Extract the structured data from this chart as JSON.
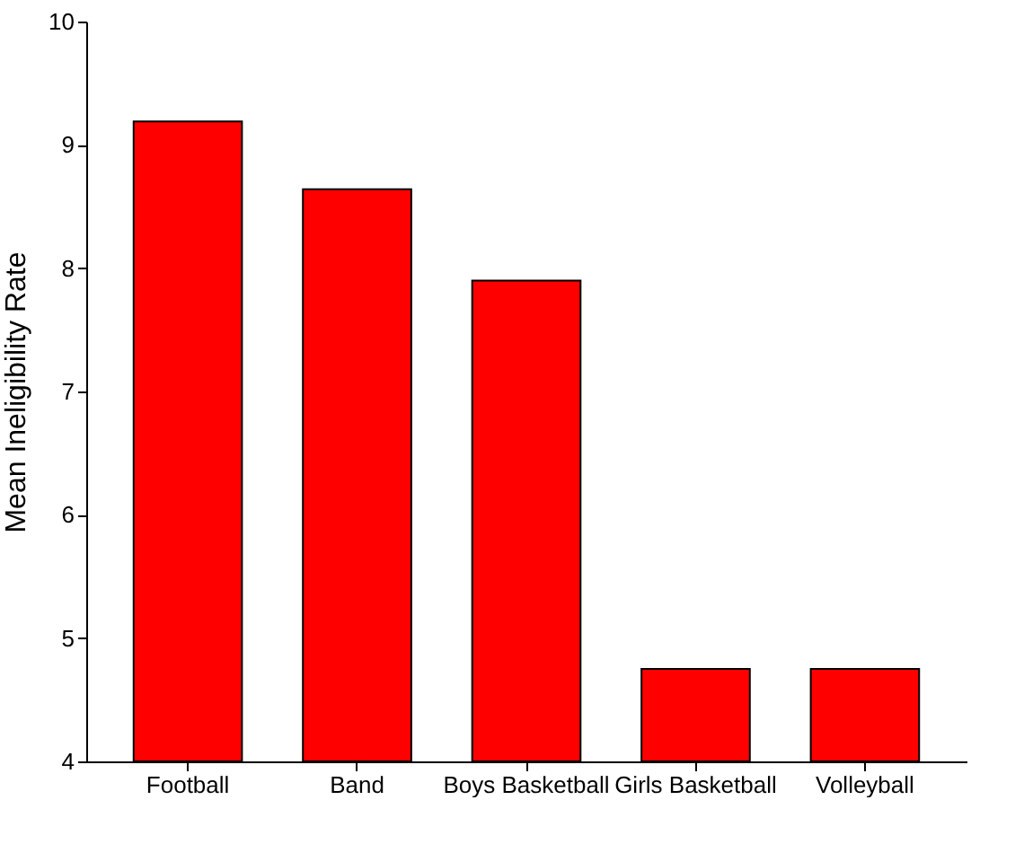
{
  "chart_data": {
    "type": "bar",
    "ylabel": "Mean Ineligibility Rate",
    "categories": [
      "Football",
      "Band",
      "Boys Basketball",
      "Girls Basketball",
      "Volleyball"
    ],
    "values": [
      9.19,
      8.64,
      7.9,
      4.75,
      4.75
    ],
    "color": "#ff0000",
    "ylim": [
      4,
      10
    ],
    "yticks": [
      4,
      5,
      6,
      7,
      8,
      9,
      10
    ],
    "grid": false
  }
}
